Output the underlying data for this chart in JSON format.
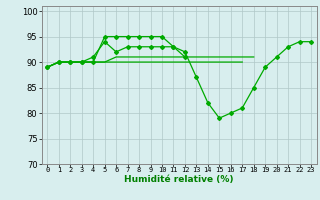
{
  "xlabel": "Humidité relative (%)",
  "xlim": [
    -0.5,
    23.5
  ],
  "ylim": [
    70,
    101
  ],
  "yticks": [
    70,
    75,
    80,
    85,
    90,
    95,
    100
  ],
  "xtick_labels": [
    "0",
    "1",
    "2",
    "3",
    "4",
    "5",
    "6",
    "7",
    "8",
    "9",
    "10",
    "11",
    "12",
    "13",
    "14",
    "15",
    "16",
    "17",
    "18",
    "19",
    "20",
    "21",
    "22",
    "23"
  ],
  "background_color": "#d8eeee",
  "grid_color": "#b0c8c8",
  "line_color": "#00aa00",
  "line1_x": [
    0,
    1,
    2,
    3,
    4,
    5,
    6,
    7,
    8,
    9,
    10,
    11,
    12,
    13,
    14,
    15,
    16,
    17,
    18,
    19,
    20,
    21,
    22,
    23
  ],
  "line1_y": [
    89,
    90,
    90,
    90,
    90,
    95,
    95,
    95,
    95,
    95,
    95,
    93,
    92,
    87,
    82,
    79,
    80,
    81,
    85,
    89,
    91,
    93,
    94,
    94
  ],
  "line2_x": [
    0,
    1,
    2,
    3,
    4,
    5,
    6,
    7,
    8,
    9,
    10,
    11,
    12
  ],
  "line2_y": [
    89,
    90,
    90,
    90,
    91,
    94,
    92,
    93,
    93,
    93,
    93,
    93,
    91
  ],
  "line3_x": [
    0,
    1,
    2,
    3,
    4,
    5,
    6,
    7,
    8,
    9,
    10,
    11,
    12,
    13,
    14,
    15,
    16,
    17
  ],
  "line3_y": [
    89,
    90,
    90,
    90,
    90,
    90,
    90,
    90,
    90,
    90,
    90,
    90,
    90,
    90,
    90,
    90,
    90,
    90
  ],
  "line4_x": [
    0,
    1,
    2,
    3,
    4,
    5,
    6,
    7,
    8,
    9,
    10,
    11,
    12,
    13,
    14,
    15,
    16,
    17,
    18
  ],
  "line4_y": [
    89,
    90,
    90,
    90,
    90,
    90,
    91,
    91,
    91,
    91,
    91,
    91,
    91,
    91,
    91,
    91,
    91,
    91,
    91
  ]
}
